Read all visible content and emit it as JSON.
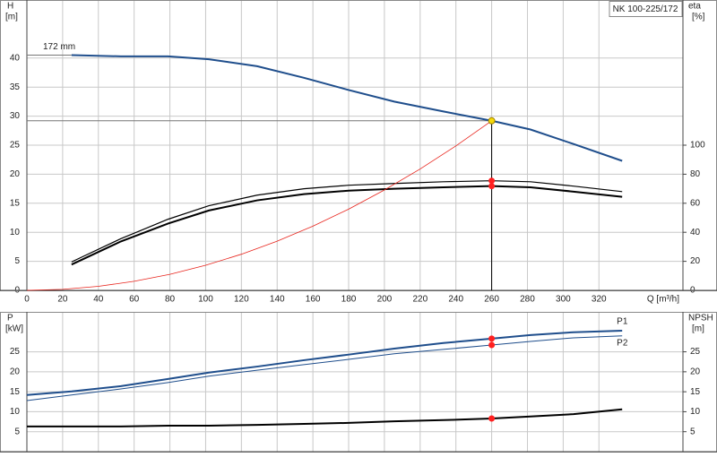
{
  "chart_data": [
    {
      "type": "line",
      "title": "NK 100-225/172",
      "ylabel": "H",
      "yunit": "[m]",
      "y2label": "eta",
      "y2unit": "[%]",
      "xlabel": "Q [m³/h]",
      "annotation": "172 mm",
      "xlim": [
        0,
        367
      ],
      "xticks": [
        0,
        20,
        40,
        60,
        80,
        100,
        120,
        140,
        160,
        180,
        200,
        220,
        240,
        260,
        280,
        300,
        320
      ],
      "ylim": [
        0,
        50
      ],
      "yticks": [
        0,
        5,
        10,
        15,
        20,
        25,
        30,
        35,
        40
      ],
      "y2lim": [
        0,
        200
      ],
      "y2ticks": [
        0,
        20,
        40,
        60,
        80,
        100
      ],
      "grid": true,
      "series": [
        {
          "color": "#1f4e8c",
          "width": 2,
          "x": [
            25,
            52.6,
            79,
            101.8,
            128.8,
            155,
            180,
            205.5,
            233,
            260,
            281.7,
            305.8,
            333
          ],
          "values": [
            40.5,
            40.3,
            40.3,
            39.8,
            38.6,
            36.6,
            34.5,
            32.5,
            30.8,
            29.2,
            27.7,
            25.2,
            22.3
          ]
        },
        {
          "color": "#000000",
          "width": 1.2,
          "axis": "y2",
          "x": [
            25,
            52.6,
            79,
            101.8,
            128.8,
            155,
            180,
            205.5,
            233,
            260,
            281.7,
            305.8,
            333
          ],
          "values": [
            19.6,
            35.6,
            49,
            58.3,
            65.6,
            70,
            72.4,
            73.6,
            74.8,
            75.5,
            74.8,
            71.8,
            68
          ]
        },
        {
          "color": "#000000",
          "width": 2,
          "axis": "y2",
          "x": [
            25,
            52.6,
            79,
            101.8,
            128.8,
            155,
            180,
            205.5,
            233,
            260,
            281.7,
            305.8,
            333
          ],
          "values": [
            17.8,
            33.7,
            46,
            55,
            62,
            66.3,
            68.7,
            70,
            71,
            71.8,
            71,
            68,
            64.4
          ]
        },
        {
          "color": "#e8241c",
          "width": 0.8,
          "x": [
            0,
            20,
            40,
            60,
            80,
            100,
            120,
            140,
            160,
            180,
            200,
            220,
            240,
            260
          ],
          "values": [
            0,
            0.17,
            0.69,
            1.56,
            2.76,
            4.32,
            6.22,
            8.46,
            11.06,
            13.99,
            17.28,
            20.9,
            24.88,
            29.2
          ]
        }
      ],
      "markers": [
        {
          "x": 260,
          "y": 29.2,
          "color": "#f5d90a"
        },
        {
          "x": 260,
          "y": 75.5,
          "axis": "y2",
          "color": "#ff2020"
        },
        {
          "x": 260,
          "y": 71.8,
          "axis": "y2",
          "color": "#ff2020"
        }
      ]
    },
    {
      "type": "line",
      "ylabel": "P",
      "yunit": "[kW]",
      "y2label": "NPSH",
      "y2unit": "[m]",
      "xlim": [
        0,
        367
      ],
      "xticks": [
        0,
        20,
        40,
        60,
        80,
        100,
        120,
        140,
        160,
        180,
        200,
        220,
        240,
        260,
        280,
        300,
        320
      ],
      "ylim": [
        0,
        35
      ],
      "yticks": [
        5,
        10,
        15,
        20,
        25
      ],
      "y2lim": [
        0,
        35
      ],
      "y2ticks": [
        5,
        10,
        15,
        20,
        25
      ],
      "grid": true,
      "series": [
        {
          "name": "P1",
          "color": "#1f4e8c",
          "width": 2,
          "x": [
            0,
            25,
            52.6,
            79,
            101.8,
            128.8,
            155,
            180,
            205.5,
            233,
            260,
            281.7,
            305.8,
            333
          ],
          "values": [
            14.2,
            15.1,
            16.4,
            18.2,
            19.8,
            21.3,
            22.9,
            24.3,
            25.8,
            27.2,
            28.3,
            29.2,
            29.9,
            30.3
          ]
        },
        {
          "name": "P2",
          "color": "#1f4e8c",
          "width": 1,
          "x": [
            0,
            25,
            52.6,
            79,
            101.8,
            128.8,
            155,
            180,
            205.5,
            233,
            260,
            281.7,
            305.8,
            333
          ],
          "values": [
            12.8,
            14.2,
            15.7,
            17.3,
            18.9,
            20.4,
            21.8,
            23.1,
            24.5,
            25.6,
            26.7,
            27.6,
            28.5,
            29.0
          ]
        },
        {
          "color": "#000000",
          "width": 2,
          "axis": "y2",
          "x": [
            0,
            25,
            52.6,
            79,
            101.8,
            128.8,
            155,
            180,
            205.5,
            233,
            260,
            281.7,
            305.8,
            333
          ],
          "values": [
            6.3,
            6.3,
            6.3,
            6.5,
            6.5,
            6.7,
            6.96,
            7.2,
            7.6,
            7.9,
            8.3,
            8.8,
            9.4,
            10.6
          ]
        }
      ],
      "markers": [
        {
          "x": 260,
          "y": 28.3,
          "color": "#ff2020"
        },
        {
          "x": 260,
          "y": 26.7,
          "color": "#ff2020"
        },
        {
          "x": 260,
          "y": 8.3,
          "axis": "y2",
          "color": "#ff2020"
        }
      ]
    }
  ]
}
